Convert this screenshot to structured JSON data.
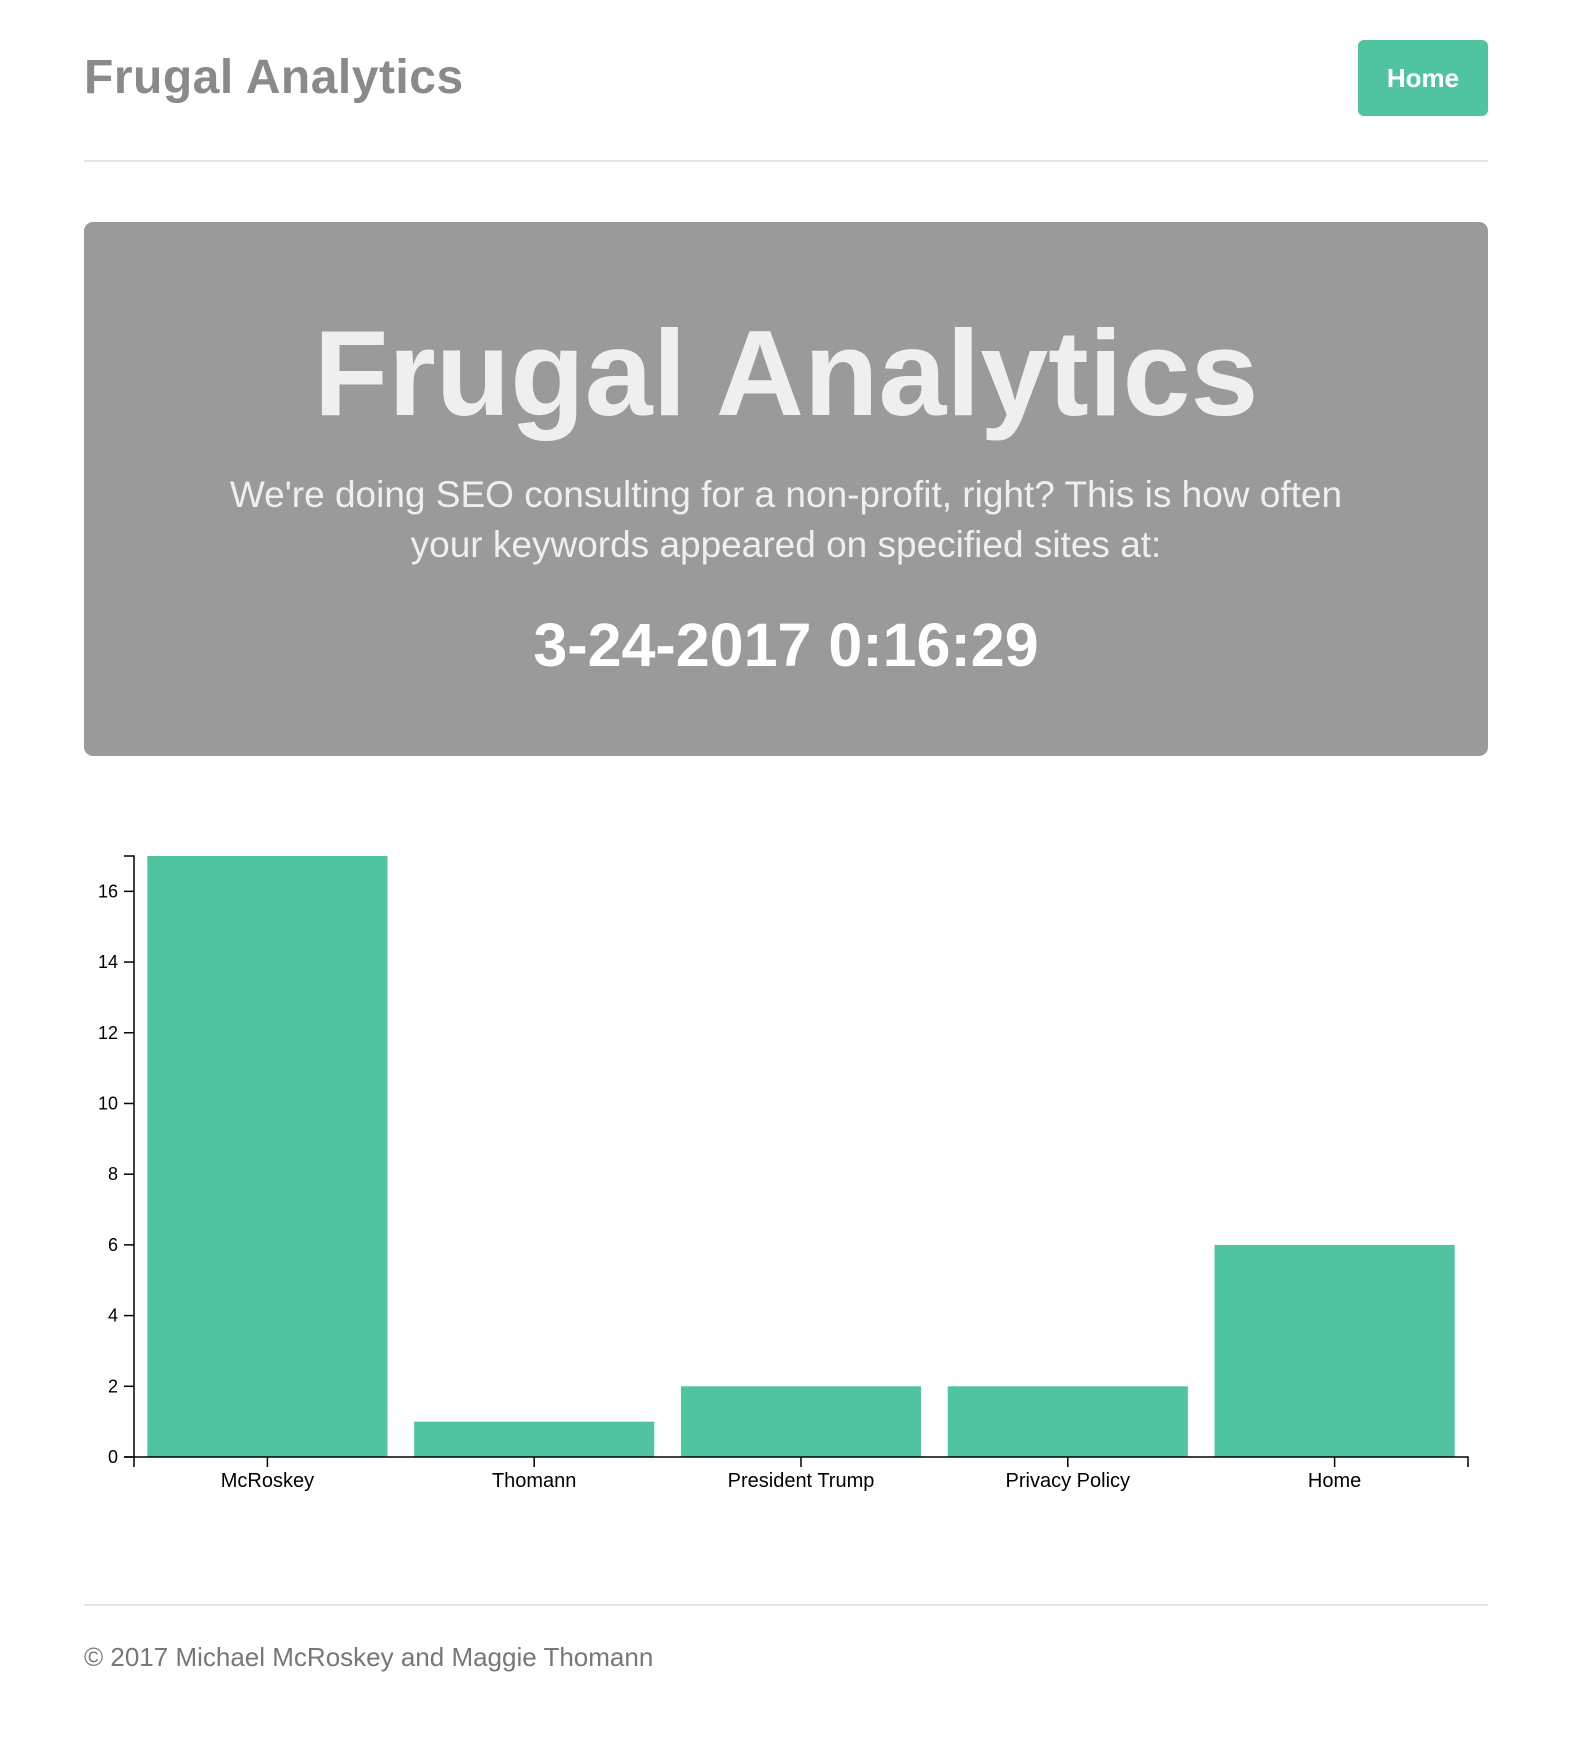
{
  "header": {
    "brand": "Frugal Analytics",
    "nav_home": "Home"
  },
  "jumbotron": {
    "title": "Frugal Analytics",
    "description": "We're doing SEO consulting for a non-profit, right? This is how often your keywords appeared on specified sites at:",
    "timestamp": "3-24-2017 0:16:29"
  },
  "colors": {
    "accent": "#50c4a0",
    "jumbotron_bg": "#9a9a9a"
  },
  "chart_data": {
    "type": "bar",
    "categories": [
      "McRoskey",
      "Thomann",
      "President Trump",
      "Privacy Policy",
      "Home"
    ],
    "values": [
      17,
      1,
      2,
      2,
      6
    ],
    "title": "",
    "xlabel": "",
    "ylabel": "",
    "ylim": [
      0,
      17
    ],
    "yticks": [
      0,
      2,
      4,
      6,
      8,
      10,
      12,
      14,
      16
    ],
    "grid": false,
    "color": "#50c4a0"
  },
  "footer": {
    "text": "© 2017 Michael McRoskey and Maggie Thomann"
  }
}
